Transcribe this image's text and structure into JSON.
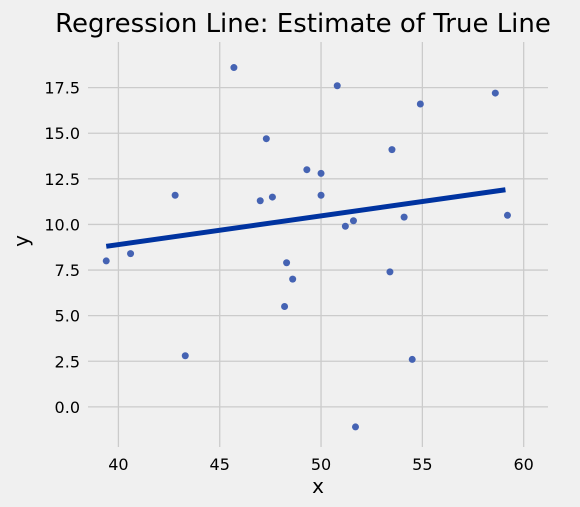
{
  "chart_data": {
    "type": "scatter",
    "title": "Regression Line: Estimate of True Line",
    "xlabel": "x",
    "ylabel": "y",
    "xlim": [
      38.5,
      61.2
    ],
    "ylim": [
      -2.2,
      20.0
    ],
    "x_ticks": [
      40,
      45,
      50,
      55,
      60
    ],
    "x_tick_labels": [
      "40",
      "45",
      "50",
      "55",
      "60"
    ],
    "y_ticks": [
      0.0,
      2.5,
      5.0,
      7.5,
      10.0,
      12.5,
      15.0,
      17.5
    ],
    "y_tick_labels": [
      "0.0",
      "2.5",
      "5.0",
      "7.5",
      "10.0",
      "12.5",
      "15.0",
      "17.5"
    ],
    "grid": true,
    "points": [
      {
        "x": 39.4,
        "y": 8.0
      },
      {
        "x": 40.6,
        "y": 8.4
      },
      {
        "x": 42.8,
        "y": 11.6
      },
      {
        "x": 43.3,
        "y": 2.8
      },
      {
        "x": 45.7,
        "y": 18.6
      },
      {
        "x": 47.0,
        "y": 11.3
      },
      {
        "x": 47.3,
        "y": 14.7
      },
      {
        "x": 47.6,
        "y": 11.5
      },
      {
        "x": 48.2,
        "y": 5.5
      },
      {
        "x": 48.3,
        "y": 7.9
      },
      {
        "x": 48.6,
        "y": 7.0
      },
      {
        "x": 49.3,
        "y": 13.0
      },
      {
        "x": 50.0,
        "y": 12.8
      },
      {
        "x": 50.0,
        "y": 11.6
      },
      {
        "x": 50.8,
        "y": 17.6
      },
      {
        "x": 51.2,
        "y": 9.9
      },
      {
        "x": 51.6,
        "y": 10.2
      },
      {
        "x": 51.7,
        "y": -1.1
      },
      {
        "x": 53.4,
        "y": 7.4
      },
      {
        "x": 53.5,
        "y": 14.1
      },
      {
        "x": 54.1,
        "y": 10.4
      },
      {
        "x": 54.5,
        "y": 2.6
      },
      {
        "x": 54.9,
        "y": 16.6
      },
      {
        "x": 58.6,
        "y": 17.2
      },
      {
        "x": 59.2,
        "y": 10.5
      }
    ],
    "regression_line": {
      "x": [
        39.4,
        59.1
      ],
      "y": [
        8.8,
        11.9
      ]
    },
    "colors": {
      "background": "#f0f0f0",
      "grid": "#cbcbcb",
      "points": "#4563b3",
      "line": "#0033a0"
    }
  }
}
